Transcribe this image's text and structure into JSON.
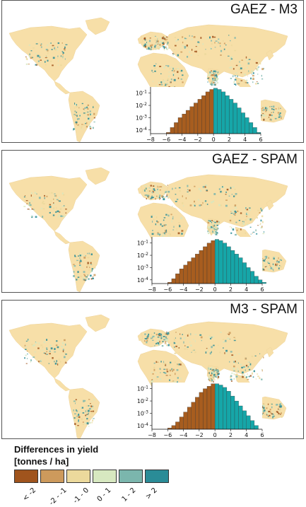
{
  "panels": [
    {
      "title": "GAEZ - M3"
    },
    {
      "title": "GAEZ - SPAM"
    },
    {
      "title": "M3 - SPAM"
    }
  ],
  "legend": {
    "title_line1": "Differences in yield",
    "title_line2": "[tonnes / ha]",
    "classes": [
      {
        "label": "< -2",
        "color": "#a0541d"
      },
      {
        "label": "-2 - -1",
        "color": "#cd9a5c"
      },
      {
        "label": "-1 - 0",
        "color": "#ecd99c"
      },
      {
        "label": "0 - 1",
        "color": "#d7e8c0"
      },
      {
        "label": "1 - 2",
        "color": "#7bb6ad"
      },
      {
        "label": "> 2",
        "color": "#2a8c97"
      }
    ]
  },
  "colors": {
    "land": "#f7dfa8",
    "negative_bar": "#a75d1f",
    "positive_bar": "#16a6a8"
  },
  "chart_data": [
    {
      "type": "bar",
      "panel": "GAEZ - M3",
      "x_ticks": [
        "-8",
        "-6",
        "-4",
        "-2",
        "0",
        "2",
        "4",
        "6"
      ],
      "y_ticks": [
        "10-4",
        "10-3",
        "10-2",
        "10-1"
      ],
      "xlim": [
        -8,
        6
      ],
      "ylim_log": [
        -4.3,
        -0.5
      ],
      "yscale": "log",
      "bins": [
        [
          -6,
          -4.2
        ],
        [
          -5.5,
          -3.8
        ],
        [
          -5,
          -3.4
        ],
        [
          -4.5,
          -3.0
        ],
        [
          -4,
          -2.7
        ],
        [
          -3.5,
          -2.4
        ],
        [
          -3,
          -2.1
        ],
        [
          -2.5,
          -1.8
        ],
        [
          -2,
          -1.5
        ],
        [
          -1.5,
          -1.2
        ],
        [
          -1,
          -0.9
        ],
        [
          -0.5,
          -0.7
        ],
        [
          0,
          -0.6
        ],
        [
          0.5,
          -0.7
        ],
        [
          1,
          -0.9
        ],
        [
          1.5,
          -1.2
        ],
        [
          2,
          -1.5
        ],
        [
          2.5,
          -1.8
        ],
        [
          3,
          -2.2
        ],
        [
          3.5,
          -2.6
        ],
        [
          4,
          -3.0
        ],
        [
          4.5,
          -3.4
        ],
        [
          5,
          -3.8
        ],
        [
          5.5,
          -4.2
        ]
      ]
    },
    {
      "type": "bar",
      "panel": "GAEZ - SPAM",
      "x_ticks": [
        "-8",
        "-6",
        "-4",
        "-2",
        "0",
        "2",
        "4",
        "6"
      ],
      "y_ticks": [
        "10-4",
        "10-3",
        "10-2",
        "10-1"
      ],
      "xlim": [
        -8,
        6
      ],
      "ylim_log": [
        -4.3,
        -0.5
      ],
      "yscale": "log",
      "bins": [
        [
          -6,
          -4.2
        ],
        [
          -5.5,
          -3.9
        ],
        [
          -5,
          -3.5
        ],
        [
          -4.5,
          -3.1
        ],
        [
          -4,
          -2.8
        ],
        [
          -3.5,
          -2.5
        ],
        [
          -3,
          -2.2
        ],
        [
          -2.5,
          -1.9
        ],
        [
          -2,
          -1.6
        ],
        [
          -1.5,
          -1.3
        ],
        [
          -1,
          -1.0
        ],
        [
          -0.5,
          -0.8
        ],
        [
          0,
          -0.7
        ],
        [
          0.5,
          -0.8
        ],
        [
          1,
          -1.0
        ],
        [
          1.5,
          -1.3
        ],
        [
          2,
          -1.6
        ],
        [
          2.5,
          -1.9
        ],
        [
          3,
          -2.2
        ],
        [
          3.5,
          -2.6
        ],
        [
          4,
          -3.0
        ],
        [
          4.5,
          -3.3
        ],
        [
          5,
          -3.7
        ],
        [
          5.5,
          -4.0
        ],
        [
          6,
          -4.2
        ]
      ]
    },
    {
      "type": "bar",
      "panel": "M3 - SPAM",
      "x_ticks": [
        "-8",
        "-6",
        "-4",
        "-2",
        "0",
        "2",
        "4",
        "6"
      ],
      "y_ticks": [
        "10-4",
        "10-3",
        "10-2",
        "10-1"
      ],
      "xlim": [
        -8,
        6
      ],
      "ylim_log": [
        -4.3,
        -0.5
      ],
      "yscale": "log",
      "bins": [
        [
          -6,
          -4.2
        ],
        [
          -5.5,
          -4.0
        ],
        [
          -5,
          -3.7
        ],
        [
          -4.5,
          -3.3
        ],
        [
          -4,
          -2.9
        ],
        [
          -3.5,
          -2.5
        ],
        [
          -3,
          -2.1
        ],
        [
          -2.5,
          -1.7
        ],
        [
          -2,
          -1.3
        ],
        [
          -1.5,
          -1.0
        ],
        [
          -1,
          -0.8
        ],
        [
          -0.5,
          -0.6
        ],
        [
          0,
          -0.6
        ],
        [
          0.5,
          -0.7
        ],
        [
          1,
          -0.9
        ],
        [
          1.5,
          -1.2
        ],
        [
          2,
          -1.6
        ],
        [
          2.5,
          -2.0
        ],
        [
          3,
          -2.4
        ],
        [
          3.5,
          -2.8
        ],
        [
          4,
          -3.2
        ],
        [
          4.5,
          -3.6
        ],
        [
          5,
          -4.0
        ]
      ]
    }
  ]
}
